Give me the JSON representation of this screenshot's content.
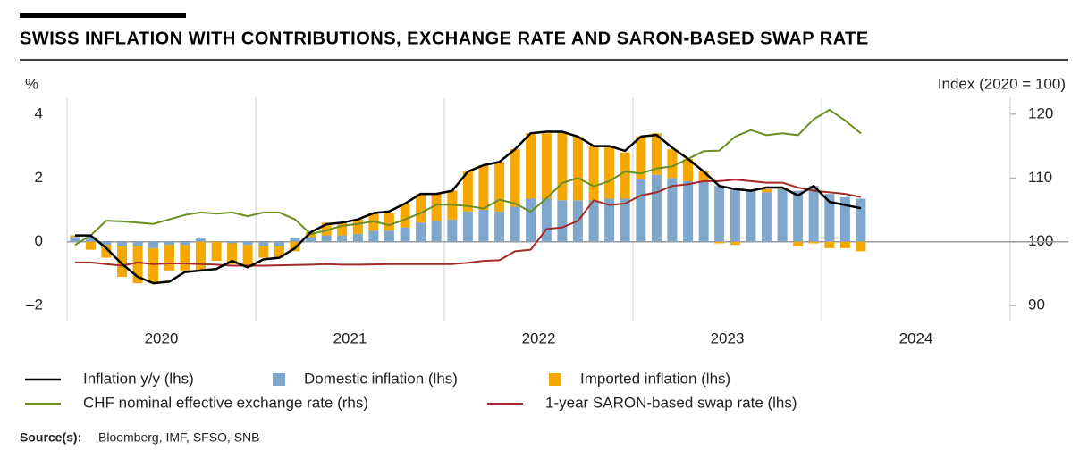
{
  "chart_data": {
    "type": "bar",
    "title": "SWISS INFLATION WITH CONTRIBUTIONS, EXCHANGE RATE AND SARON-BASED SWAP RATE",
    "ylabel": "%",
    "y2label": "Index (2020 = 100)",
    "source_label": "Source(s):",
    "source": "Bloomberg, IMF, SFSO, SNB",
    "x": [
      2020.042,
      2020.125,
      2020.208,
      2020.292,
      2020.375,
      2020.458,
      2020.542,
      2020.625,
      2020.708,
      2020.792,
      2020.875,
      2020.958,
      2021.042,
      2021.125,
      2021.208,
      2021.292,
      2021.375,
      2021.458,
      2021.542,
      2021.625,
      2021.708,
      2021.792,
      2021.875,
      2021.958,
      2022.042,
      2022.125,
      2022.208,
      2022.292,
      2022.375,
      2022.458,
      2022.542,
      2022.625,
      2022.708,
      2022.792,
      2022.875,
      2022.958,
      2023.042,
      2023.125,
      2023.208,
      2023.292,
      2023.375,
      2023.458,
      2023.542,
      2023.625,
      2023.708,
      2023.792,
      2023.875,
      2023.958,
      2024.042,
      2024.125,
      2024.208
    ],
    "xlim": [
      2020,
      2025
    ],
    "xticks": [
      {
        "value": 2020.5,
        "label": "2020"
      },
      {
        "value": 2021.5,
        "label": "2021"
      },
      {
        "value": 2022.5,
        "label": "2022"
      },
      {
        "value": 2023.5,
        "label": "2023"
      },
      {
        "value": 2024.5,
        "label": "2024"
      }
    ],
    "xgrid": [
      2020,
      2021,
      2022,
      2023,
      2024,
      2025
    ],
    "ylim": [
      -2.5,
      4.5
    ],
    "yticks": [
      {
        "value": -2,
        "label": "–2"
      },
      0,
      2,
      4
    ],
    "y2lim": [
      87.5,
      122.5
    ],
    "y2ticks": [
      90,
      100,
      110,
      120
    ],
    "series": [
      {
        "name": "Inflation y/y (lhs)",
        "type": "line",
        "color": "#000000",
        "values": [
          0.2,
          0.2,
          -0.2,
          -0.7,
          -1.1,
          -1.3,
          -1.25,
          -0.95,
          -0.9,
          -0.85,
          -0.6,
          -0.8,
          -0.55,
          -0.5,
          -0.2,
          0.3,
          0.55,
          0.6,
          0.7,
          0.9,
          0.95,
          1.2,
          1.5,
          1.5,
          1.6,
          2.2,
          2.4,
          2.5,
          2.9,
          3.4,
          3.45,
          3.45,
          3.3,
          3.0,
          3.0,
          2.85,
          3.3,
          3.35,
          2.95,
          2.6,
          2.2,
          1.75,
          1.65,
          1.6,
          1.7,
          1.7,
          1.45,
          1.75,
          1.25,
          1.15,
          1.05
        ]
      },
      {
        "name": "Domestic inflation (lhs)",
        "type": "bar",
        "color": "#7fa7cc",
        "values": [
          0.15,
          0.15,
          -0.1,
          -0.15,
          -0.15,
          -0.2,
          -0.1,
          -0.1,
          0.1,
          0.0,
          -0.05,
          -0.1,
          -0.15,
          -0.15,
          0.1,
          0.15,
          0.2,
          0.2,
          0.25,
          0.35,
          0.35,
          0.45,
          0.6,
          0.65,
          0.7,
          0.95,
          1.0,
          0.95,
          1.1,
          1.35,
          1.35,
          1.3,
          1.3,
          1.3,
          1.35,
          1.35,
          1.95,
          2.1,
          2.0,
          1.9,
          1.9,
          1.75,
          1.7,
          1.6,
          1.55,
          1.65,
          1.6,
          1.75,
          1.5,
          1.4,
          1.35
        ]
      },
      {
        "name": "Imported inflation (lhs)",
        "type": "bar",
        "color": "#f5a800",
        "values": [
          0.05,
          -0.25,
          -0.4,
          -0.95,
          -1.15,
          -1.1,
          -0.8,
          -0.8,
          -0.9,
          -0.6,
          -0.65,
          -0.7,
          -0.35,
          -0.35,
          -0.3,
          0.15,
          0.4,
          0.4,
          0.45,
          0.55,
          0.55,
          0.75,
          0.9,
          0.85,
          0.9,
          1.25,
          1.4,
          1.55,
          1.8,
          2.05,
          2.05,
          2.15,
          2.0,
          1.7,
          1.65,
          1.45,
          1.35,
          1.3,
          0.9,
          0.7,
          0.3,
          -0.05,
          -0.1,
          0.0,
          0.1,
          0.05,
          -0.15,
          -0.05,
          -0.2,
          -0.2,
          -0.3
        ]
      },
      {
        "name": "CHF nominal effective exchange rate (rhs)",
        "type": "line",
        "color": "#6b8e23",
        "axis": "y2",
        "values": [
          99.5,
          101,
          103.3,
          103.2,
          103,
          102.8,
          103.5,
          104.2,
          104.6,
          104.4,
          104.6,
          104.0,
          104.6,
          104.6,
          103.5,
          101.2,
          101.8,
          102.5,
          102.8,
          103.2,
          102.6,
          103.5,
          104.5,
          105.8,
          105.8,
          105.6,
          105.2,
          106.6,
          106.0,
          104.7,
          106.8,
          109.2,
          110.0,
          108.7,
          109.5,
          111.0,
          110.7,
          111.5,
          111.8,
          113.0,
          114.2,
          114.3,
          116.5,
          117.5,
          116.7,
          117.0,
          116.7,
          119.2,
          120.7,
          119.0,
          117.0
        ]
      },
      {
        "name": "1-year SARON-based swap rate (lhs)",
        "type": "line",
        "color": "#a52a2a",
        "values": [
          -0.65,
          -0.65,
          -0.7,
          -0.75,
          -0.65,
          -0.7,
          -0.68,
          -0.68,
          -0.7,
          -0.72,
          -0.75,
          -0.75,
          -0.75,
          -0.74,
          -0.73,
          -0.72,
          -0.7,
          -0.72,
          -0.72,
          -0.71,
          -0.7,
          -0.7,
          -0.7,
          -0.7,
          -0.7,
          -0.66,
          -0.6,
          -0.58,
          -0.3,
          -0.25,
          0.4,
          0.45,
          0.65,
          1.3,
          1.15,
          1.2,
          1.45,
          1.55,
          1.75,
          1.8,
          1.9,
          1.9,
          1.95,
          1.9,
          1.85,
          1.85,
          1.7,
          1.6,
          1.55,
          1.5,
          1.4
        ]
      }
    ]
  }
}
